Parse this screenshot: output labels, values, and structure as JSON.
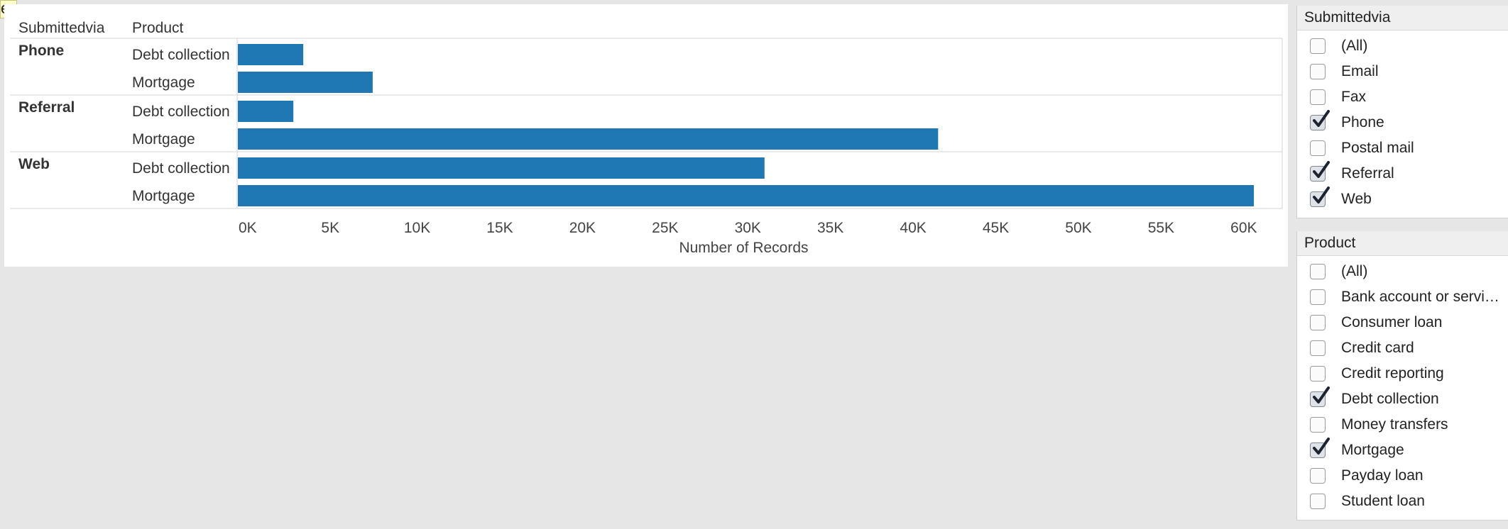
{
  "tooltip_fragment": "e.",
  "chart": {
    "row_header": "Submittedvia",
    "col_header": "Product",
    "bar_color": "#1f77b4"
  },
  "chart_data": {
    "type": "bar",
    "orientation": "horizontal",
    "groups": [
      {
        "name": "Phone",
        "bars": [
          {
            "category": "Debt collection",
            "value": 4000
          },
          {
            "category": "Mortgage",
            "value": 8200
          }
        ]
      },
      {
        "name": "Referral",
        "bars": [
          {
            "category": "Debt collection",
            "value": 3400
          },
          {
            "category": "Mortgage",
            "value": 42400
          }
        ]
      },
      {
        "name": "Web",
        "bars": [
          {
            "category": "Debt collection",
            "value": 31900
          },
          {
            "category": "Mortgage",
            "value": 61500
          }
        ]
      }
    ],
    "xlabel": "Number of Records",
    "xlim": [
      0,
      63000
    ],
    "ticks": [
      {
        "v": 0,
        "label": "0K"
      },
      {
        "v": 5000,
        "label": "5K"
      },
      {
        "v": 10000,
        "label": "10K"
      },
      {
        "v": 15000,
        "label": "15K"
      },
      {
        "v": 20000,
        "label": "20K"
      },
      {
        "v": 25000,
        "label": "25K"
      },
      {
        "v": 30000,
        "label": "30K"
      },
      {
        "v": 35000,
        "label": "35K"
      },
      {
        "v": 40000,
        "label": "40K"
      },
      {
        "v": 45000,
        "label": "45K"
      },
      {
        "v": 50000,
        "label": "50K"
      },
      {
        "v": 55000,
        "label": "55K"
      },
      {
        "v": 60000,
        "label": "60K"
      }
    ],
    "grid": false
  },
  "filters": [
    {
      "id": "submittedvia",
      "title": "Submittedvia",
      "items": [
        {
          "label": "(All)",
          "checked": false
        },
        {
          "label": "Email",
          "checked": false
        },
        {
          "label": "Fax",
          "checked": false
        },
        {
          "label": "Phone",
          "checked": true
        },
        {
          "label": "Postal mail",
          "checked": false
        },
        {
          "label": "Referral",
          "checked": true
        },
        {
          "label": "Web",
          "checked": true
        }
      ]
    },
    {
      "id": "product",
      "title": "Product",
      "items": [
        {
          "label": "(All)",
          "checked": false
        },
        {
          "label": "Bank account or servi…",
          "checked": false
        },
        {
          "label": "Consumer loan",
          "checked": false
        },
        {
          "label": "Credit card",
          "checked": false
        },
        {
          "label": "Credit reporting",
          "checked": false
        },
        {
          "label": "Debt collection",
          "checked": true
        },
        {
          "label": "Money transfers",
          "checked": false
        },
        {
          "label": "Mortgage",
          "checked": true
        },
        {
          "label": "Payday loan",
          "checked": false
        },
        {
          "label": "Student loan",
          "checked": false
        }
      ]
    }
  ]
}
